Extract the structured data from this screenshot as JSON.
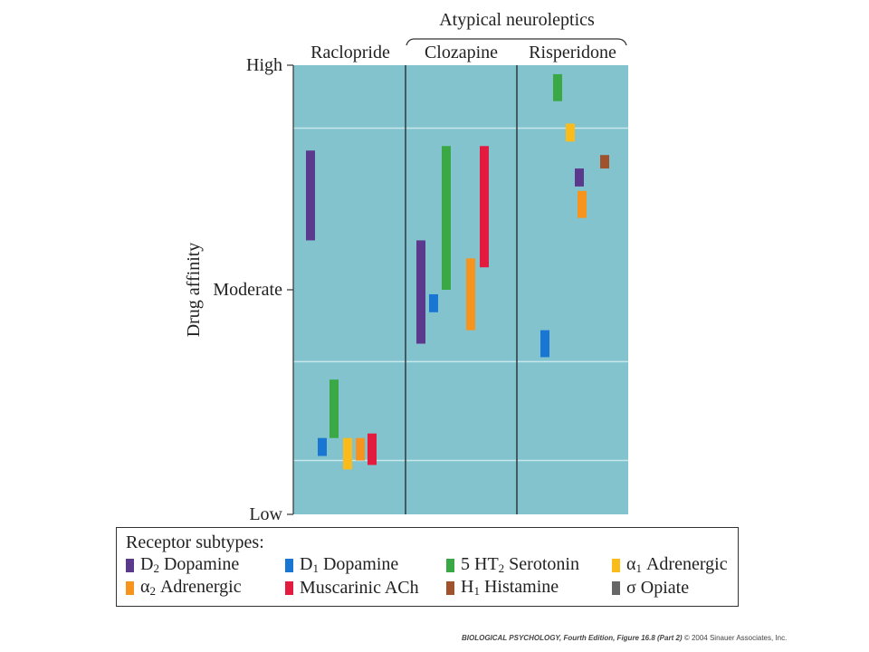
{
  "chart_data": {
    "type": "bar",
    "group_header": "Atypical neuroleptics",
    "ylabel": "Drug affinity",
    "yticks": [
      {
        "label": "High",
        "value": 1.0
      },
      {
        "label": "Moderate",
        "value": 0.5
      },
      {
        "label": "Low",
        "value": 0.0
      }
    ],
    "ylim": [
      0,
      1
    ],
    "grid": true,
    "legend_placement": "bottom",
    "drugs": [
      {
        "name": "Raclopride",
        "ranges": [
          {
            "receptor": "D2",
            "low": 0.61,
            "high": 0.81
          },
          {
            "receptor": "5HT2",
            "low": 0.17,
            "high": 0.3
          },
          {
            "receptor": "D1",
            "low": 0.13,
            "high": 0.17
          },
          {
            "receptor": "a1",
            "low": 0.1,
            "high": 0.17
          },
          {
            "receptor": "a2",
            "low": 0.12,
            "high": 0.17
          },
          {
            "receptor": "ACh",
            "low": 0.11,
            "high": 0.18
          }
        ]
      },
      {
        "name": "Clozapine",
        "ranges": [
          {
            "receptor": "D2",
            "low": 0.38,
            "high": 0.61
          },
          {
            "receptor": "D1",
            "low": 0.45,
            "high": 0.49
          },
          {
            "receptor": "5HT2",
            "low": 0.5,
            "high": 0.82
          },
          {
            "receptor": "a2",
            "low": 0.41,
            "high": 0.57
          },
          {
            "receptor": "ACh",
            "low": 0.55,
            "high": 0.82
          }
        ]
      },
      {
        "name": "Risperidone",
        "ranges": [
          {
            "receptor": "5HT2",
            "low": 0.92,
            "high": 0.98
          },
          {
            "receptor": "a1",
            "low": 0.83,
            "high": 0.87
          },
          {
            "receptor": "H1",
            "low": 0.77,
            "high": 0.8
          },
          {
            "receptor": "D2",
            "low": 0.73,
            "high": 0.77
          },
          {
            "receptor": "a2",
            "low": 0.66,
            "high": 0.72
          },
          {
            "receptor": "D1",
            "low": 0.35,
            "high": 0.41
          }
        ]
      }
    ]
  },
  "legend": {
    "title": "Receptor subtypes:",
    "items": [
      {
        "key": "D2",
        "pre": "D",
        "sub": "2",
        "post": " Dopamine",
        "color": "#5b3a8e"
      },
      {
        "key": "D1",
        "pre": "D",
        "sub": "1",
        "post": " Dopamine",
        "color": "#1976d2"
      },
      {
        "key": "5HT2",
        "pre": "5 HT",
        "sub": "2",
        "post": " Serotonin",
        "color": "#3aa845"
      },
      {
        "key": "a1",
        "pre": "α",
        "sub": "1",
        "post": " Adrenergic",
        "color": "#fbbc1b"
      },
      {
        "key": "a2",
        "pre": "α",
        "sub": "2",
        "post": " Adrenergic",
        "color": "#f7941d"
      },
      {
        "key": "ACh",
        "pre": "Muscarinic ACh",
        "sub": "",
        "post": "",
        "color": "#e31b3e"
      },
      {
        "key": "H1",
        "pre": "H",
        "sub": "1",
        "post": " Histamine",
        "color": "#a0522d"
      },
      {
        "key": "opiate",
        "pre": "σ Opiate",
        "sub": "",
        "post": "",
        "color": "#666666"
      }
    ]
  },
  "colors": {
    "plot_background": "#82c3ce",
    "grid": "#c8e7ec",
    "divider": "#2b3a3e"
  },
  "credit": {
    "title": "BIOLOGICAL PSYCHOLOGY, Fourth Edition, Figure 16.8 (Part 2)",
    "copyright": "© 2004 Sinauer Associates, Inc."
  }
}
